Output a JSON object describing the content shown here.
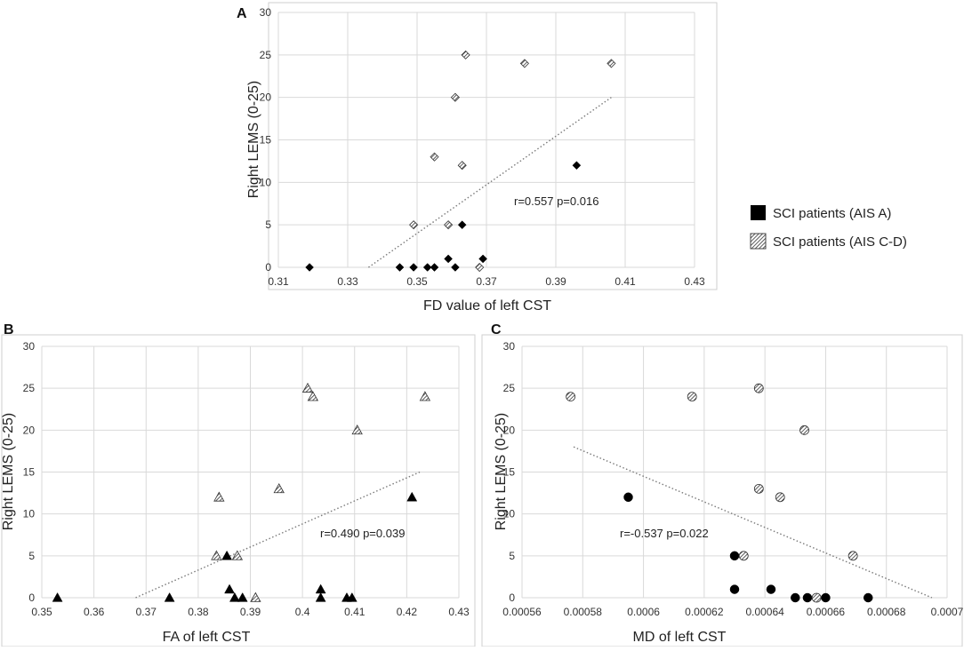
{
  "legend": {
    "items": [
      {
        "label": "SCI patients (AIS A)",
        "pattern": "solid"
      },
      {
        "label": "SCI patients (AIS C-D)",
        "pattern": "hatched"
      }
    ]
  },
  "chart_data": [
    {
      "panel": "A",
      "type": "scatter",
      "marker": "diamond",
      "xlabel": "FD value of left CST",
      "ylabel": "Right LEMS (0-25)",
      "xlim": [
        0.31,
        0.43
      ],
      "ylim": [
        0,
        30
      ],
      "xticks": [
        0.31,
        0.33,
        0.35,
        0.37,
        0.39,
        0.41,
        0.43
      ],
      "xtick_labels": [
        "0.31",
        "0.33",
        "0.35",
        "0.37",
        "0.39",
        "0.41",
        "0.43"
      ],
      "yticks": [
        0,
        5,
        10,
        15,
        20,
        25,
        30
      ],
      "ytick_labels": [
        "0",
        "5",
        "10",
        "15",
        "20",
        "25",
        "30"
      ],
      "annotation": "r=0.557 p=0.016",
      "trendline": {
        "x": [
          0.336,
          0.406
        ],
        "y": [
          0,
          20
        ]
      },
      "series": [
        {
          "name": "SCI patients (AIS A)",
          "points": [
            [
              0.319,
              0
            ],
            [
              0.345,
              0
            ],
            [
              0.349,
              0
            ],
            [
              0.353,
              0
            ],
            [
              0.355,
              0
            ],
            [
              0.359,
              1
            ],
            [
              0.361,
              0
            ],
            [
              0.363,
              5
            ],
            [
              0.369,
              1
            ],
            [
              0.396,
              12
            ]
          ]
        },
        {
          "name": "SCI patients (AIS C-D)",
          "points": [
            [
              0.349,
              5
            ],
            [
              0.355,
              13
            ],
            [
              0.359,
              5
            ],
            [
              0.361,
              20
            ],
            [
              0.363,
              12
            ],
            [
              0.364,
              25
            ],
            [
              0.368,
              0
            ],
            [
              0.381,
              24
            ],
            [
              0.406,
              24
            ]
          ]
        }
      ]
    },
    {
      "panel": "B",
      "type": "scatter",
      "marker": "triangle",
      "xlabel": "FA of left CST",
      "ylabel": "Right LEMS (0-25)",
      "xlim": [
        0.35,
        0.43
      ],
      "ylim": [
        0,
        30
      ],
      "xticks": [
        0.35,
        0.36,
        0.37,
        0.38,
        0.39,
        0.4,
        0.41,
        0.42,
        0.43
      ],
      "xtick_labels": [
        "0.35",
        "0.36",
        "0.37",
        "0.38",
        "0.39",
        "0.4",
        "0.41",
        "0.42",
        "0.43"
      ],
      "yticks": [
        0,
        5,
        10,
        15,
        20,
        25,
        30
      ],
      "ytick_labels": [
        "0",
        "5",
        "10",
        "15",
        "20",
        "25",
        "30"
      ],
      "annotation": "r=0.490 p=0.039",
      "trendline": {
        "x": [
          0.368,
          0.4225
        ],
        "y": [
          0,
          15
        ]
      },
      "series": [
        {
          "name": "SCI patients (AIS A)",
          "points": [
            [
              0.353,
              0
            ],
            [
              0.3745,
              0
            ],
            [
              0.3855,
              5
            ],
            [
              0.386,
              1
            ],
            [
              0.387,
              0
            ],
            [
              0.3885,
              0
            ],
            [
              0.4035,
              1
            ],
            [
              0.4035,
              0
            ],
            [
              0.4085,
              0
            ],
            [
              0.4095,
              0
            ],
            [
              0.421,
              12
            ]
          ]
        },
        {
          "name": "SCI patients (AIS C-D)",
          "points": [
            [
              0.3835,
              5
            ],
            [
              0.384,
              12
            ],
            [
              0.3875,
              5
            ],
            [
              0.391,
              0
            ],
            [
              0.3955,
              13
            ],
            [
              0.401,
              25
            ],
            [
              0.402,
              24
            ],
            [
              0.4105,
              20
            ],
            [
              0.4235,
              24
            ]
          ]
        }
      ]
    },
    {
      "panel": "C",
      "type": "scatter",
      "marker": "circle",
      "xlabel": "MD of left CST",
      "ylabel": "Right LEMS (0-25)",
      "xlim": [
        0.00056,
        0.0007
      ],
      "ylim": [
        0,
        30
      ],
      "xticks": [
        0.00056,
        0.00058,
        0.0006,
        0.00062,
        0.00064,
        0.00066,
        0.00068,
        0.0007
      ],
      "xtick_labels": [
        "0.00056",
        "0.00058",
        "0.0006",
        "0.00062",
        "0.00064",
        "0.00066",
        "0.00068",
        "0.0007"
      ],
      "yticks": [
        0,
        5,
        10,
        15,
        20,
        25,
        30
      ],
      "ytick_labels": [
        "0",
        "5",
        "10",
        "15",
        "20",
        "25",
        "30"
      ],
      "annotation": "r=-0.537 p=0.022",
      "trendline": {
        "x": [
          0.000577,
          0.000695
        ],
        "y": [
          18,
          0
        ]
      },
      "series": [
        {
          "name": "SCI patients (AIS A)",
          "points": [
            [
              0.000595,
              12
            ],
            [
              0.00063,
              5
            ],
            [
              0.00063,
              1
            ],
            [
              0.000642,
              1
            ],
            [
              0.00065,
              0
            ],
            [
              0.000654,
              0
            ],
            [
              0.00066,
              0
            ],
            [
              0.000674,
              0
            ]
          ]
        },
        {
          "name": "SCI patients (AIS C-D)",
          "points": [
            [
              0.000576,
              24
            ],
            [
              0.000616,
              24
            ],
            [
              0.000638,
              25
            ],
            [
              0.000653,
              20
            ],
            [
              0.000638,
              13
            ],
            [
              0.000645,
              12
            ],
            [
              0.000633,
              5
            ],
            [
              0.000669,
              5
            ],
            [
              0.000657,
              0
            ]
          ]
        }
      ]
    }
  ]
}
